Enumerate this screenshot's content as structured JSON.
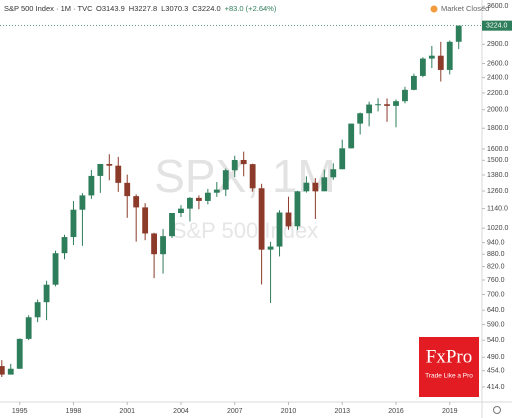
{
  "chart_data": {
    "type": "candlestick",
    "title": "S&P 500 Index · 1M · TVC",
    "legend_values": [
      "O3143.9",
      "H3227.8",
      "L3070.3",
      "C3224.0",
      "+83.0 (+2.64%)"
    ],
    "status": "Market Closed",
    "watermark": "SPX, 1M",
    "watermark_subtitle": "S&P 500 Index",
    "logo": {
      "name": "FxPro",
      "tagline": "Trade Like a Pro"
    },
    "log_scale": true,
    "grid": false,
    "up_color": "#2e7d5b",
    "down_color": "#8c3b2b",
    "x": [
      1994.0,
      1994.5,
      1995.0,
      1995.5,
      1996.0,
      1996.5,
      1997.0,
      1997.5,
      1998.0,
      1998.5,
      1999.0,
      1999.5,
      2000.0,
      2000.5,
      2001.0,
      2001.5,
      2002.0,
      2002.5,
      2003.0,
      2003.5,
      2004.0,
      2004.5,
      2005.0,
      2005.5,
      2006.0,
      2006.5,
      2007.0,
      2007.5,
      2008.0,
      2008.5,
      2009.0,
      2009.5,
      2010.0,
      2010.5,
      2011.0,
      2011.5,
      2012.0,
      2012.5,
      2013.0,
      2013.5,
      2014.0,
      2014.5,
      2015.0,
      2015.5,
      2016.0,
      2016.5,
      2017.0,
      2017.5,
      2018.0,
      2018.5,
      2019.0,
      2019.5
    ],
    "open": [
      466,
      444,
      459,
      544,
      615,
      670,
      740,
      885,
      970,
      1133,
      1229,
      1373,
      1469,
      1455,
      1320,
      1224,
      1148,
      990,
      880,
      975,
      1112,
      1140,
      1212,
      1191,
      1248,
      1270,
      1418,
      1503,
      1468,
      1280,
      903,
      919,
      1115,
      1031,
      1258,
      1321,
      1258,
      1362,
      1426,
      1606,
      1848,
      1960,
      2059,
      2063,
      2044,
      2099,
      2239,
      2423,
      2674,
      2718,
      2507,
      2942
    ],
    "high": [
      482,
      472,
      545,
      622,
      680,
      757,
      898,
      983,
      1190,
      1245,
      1420,
      1470,
      1553,
      1530,
      1383,
      1236,
      1176,
      994,
      1015,
      1112,
      1163,
      1217,
      1229,
      1275,
      1326,
      1431,
      1540,
      1576,
      1472,
      1313,
      944,
      1130,
      1220,
      1262,
      1370,
      1356,
      1422,
      1475,
      1687,
      1849,
      1968,
      2093,
      2135,
      2132,
      2120,
      2278,
      2454,
      2695,
      2873,
      2941,
      2964,
      3227
    ],
    "low": [
      438,
      445,
      459,
      540,
      598,
      605,
      733,
      855,
      927,
      923,
      1205,
      1247,
      1339,
      1254,
      1082,
      945,
      953,
      768,
      788,
      965,
      1087,
      1060,
      1136,
      1168,
      1219,
      1224,
      1364,
      1370,
      1256,
      741,
      667,
      869,
      1011,
      1010,
      1249,
      1075,
      1259,
      1343,
      1426,
      1604,
      1737,
      1820,
      1981,
      1867,
      1810,
      2074,
      2233,
      2405,
      2533,
      2347,
      2444,
      2822
    ],
    "close": [
      444,
      459,
      544,
      615,
      670,
      740,
      885,
      970,
      1133,
      1229,
      1373,
      1469,
      1455,
      1320,
      1224,
      1148,
      990,
      880,
      975,
      1112,
      1140,
      1212,
      1191,
      1248,
      1270,
      1418,
      1503,
      1468,
      1280,
      903,
      919,
      1115,
      1031,
      1258,
      1321,
      1258,
      1362,
      1426,
      1606,
      1848,
      1960,
      2059,
      2063,
      2044,
      2099,
      2239,
      2423,
      2674,
      2718,
      2507,
      2942,
      3224
    ],
    "last_price": {
      "value": 3224.0,
      "label": "3224.0"
    },
    "xlim": [
      1993.9,
      2020.8
    ],
    "xticks": [
      1995,
      1998,
      2001,
      2004,
      2007,
      2010,
      2013,
      2016,
      2019
    ],
    "ylim": [
      380,
      3730
    ],
    "yticks": [
      {
        "value": 414,
        "label": "414.0"
      },
      {
        "value": 454,
        "label": "454.0"
      },
      {
        "value": 490,
        "label": "490.0"
      },
      {
        "value": 540,
        "label": "540.0"
      },
      {
        "value": 590,
        "label": "590.0"
      },
      {
        "value": 640,
        "label": "640.0"
      },
      {
        "value": 700,
        "label": "700.0"
      },
      {
        "value": 760,
        "label": "760.0"
      },
      {
        "value": 820,
        "label": "820.0"
      },
      {
        "value": 880,
        "label": "880.0"
      },
      {
        "value": 940,
        "label": "940.0"
      },
      {
        "value": 1020,
        "label": "1020.0"
      },
      {
        "value": 1140,
        "label": "1140.0"
      },
      {
        "value": 1260,
        "label": "1260.0"
      },
      {
        "value": 1380,
        "label": "1380.0"
      },
      {
        "value": 1500,
        "label": "1500.0"
      },
      {
        "value": 1600,
        "label": "1600.0"
      },
      {
        "value": 1800,
        "label": "1800.0"
      },
      {
        "value": 2000,
        "label": "2000.0"
      },
      {
        "value": 2200,
        "label": "2200.0"
      },
      {
        "value": 2400,
        "label": "2400.0"
      },
      {
        "value": 2600,
        "label": "2600.0"
      },
      {
        "value": 2900,
        "label": "2900.0"
      },
      {
        "value": 3600,
        "label": "3600.0"
      }
    ]
  }
}
